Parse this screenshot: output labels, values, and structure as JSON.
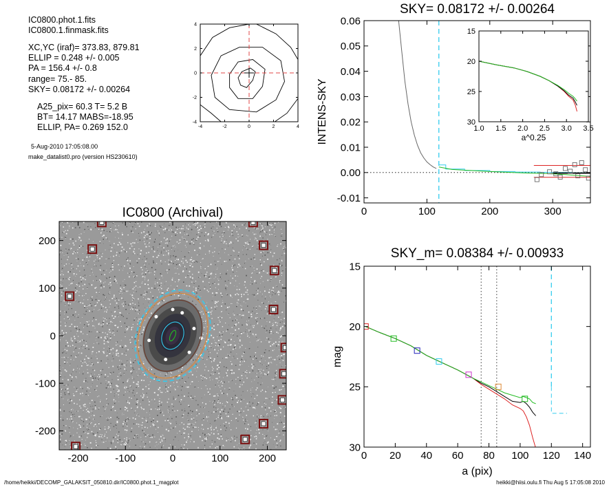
{
  "info": {
    "lines": [
      {
        "text": "IC0800.phot.1.fits"
      },
      {
        "text": "IC0800.1.finmask.fits"
      },
      {
        "text": "XC,YC (iraf)=   373.83, 879.81"
      },
      {
        "text": "ELLIP = 0.248 +/- 0.005"
      },
      {
        "text": "PA    = 156.4 +/-   0.8"
      },
      {
        "text": "range=   75.-   85."
      },
      {
        "text": "SKY= 0.08172 +/- 0.00264"
      },
      {
        "text": "A25_pix= 60.3   T= 5.2  B"
      },
      {
        "text": "BT=  14.17   MABS=-18.95"
      },
      {
        "text": "ELLIP, PA= 0.269   152.0"
      },
      {
        "text": "5-Aug-2010 17:05:08.00"
      },
      {
        "text": "make_datalist0.pro (version HS230610)"
      }
    ]
  },
  "footer": {
    "left": "/home/heikki/DECOMP_GALAKSIT_050810.dir/IC0800.phot.1_magplot",
    "right": "heikki@hiisi.oulu.fi  Thu Aug  5 17:05:08 2010"
  },
  "colors": {
    "cyan": "#33ccee",
    "green": "#22bb22",
    "red": "#dd2222",
    "gray": "#666666",
    "blue": "#2222bb",
    "magenta": "#cc33cc",
    "orange": "#dd8833",
    "brown": "#6b3a2a"
  },
  "chart_data": [
    {
      "id": "contour",
      "type": "contour",
      "title": "",
      "xlim": [
        -4,
        4
      ],
      "ylim": [
        -4,
        4
      ],
      "xticks": [
        -4,
        -2,
        0,
        2,
        4
      ],
      "yticks": [
        -4,
        -2,
        0,
        2,
        4
      ],
      "center": [
        0,
        0
      ],
      "contours": [
        [
          [
            -0.9,
            -0.4
          ],
          [
            -0.6,
            0.1
          ],
          [
            0.1,
            0.4
          ],
          [
            0.5,
            0.1
          ],
          [
            0.3,
            -0.6
          ],
          [
            -0.2,
            -1.2
          ],
          [
            -0.7,
            -1.0
          ]
        ],
        [
          [
            -1.6,
            -1.2
          ],
          [
            -1.6,
            -0.1
          ],
          [
            -0.9,
            0.9
          ],
          [
            0.3,
            1.1
          ],
          [
            1.3,
            0.3
          ],
          [
            1.1,
            -1.1
          ],
          [
            0.3,
            -2.1
          ],
          [
            -0.9,
            -2.1
          ]
        ],
        [
          [
            -2.8,
            -2.0
          ],
          [
            -3.1,
            -0.2
          ],
          [
            -2.3,
            1.4
          ],
          [
            -0.8,
            2.1
          ],
          [
            1.1,
            2.1
          ],
          [
            2.6,
            1.0
          ],
          [
            2.9,
            -0.7
          ],
          [
            2.2,
            -2.2
          ],
          [
            0.6,
            -3.2
          ],
          [
            -1.6,
            -3.0
          ]
        ],
        [
          [
            -4,
            1.4
          ],
          [
            -3,
            2.9
          ],
          [
            -1.6,
            3.7
          ],
          [
            0,
            4
          ]
        ],
        [
          [
            0.6,
            4
          ],
          [
            2.2,
            3.2
          ],
          [
            3.4,
            2.1
          ],
          [
            4,
            1.1
          ]
        ],
        [
          [
            4,
            -2.1
          ],
          [
            3.1,
            -3.3
          ],
          [
            2.1,
            -4
          ]
        ],
        [
          [
            -4,
            -2.6
          ],
          [
            -3.1,
            -3.3
          ],
          [
            -2.3,
            -4
          ]
        ]
      ]
    },
    {
      "id": "sky",
      "type": "line",
      "title": "SKY= 0.08172 +/- 0.00264",
      "xlabel": "",
      "ylabel": "INTENS-SKY",
      "xlim": [
        0,
        360
      ],
      "ylim": [
        -0.012,
        0.06
      ],
      "xticks": [
        0,
        100,
        200,
        300
      ],
      "yticks": [
        -0.01,
        0.0,
        0.01,
        0.02,
        0.03,
        0.04,
        0.05,
        0.06
      ],
      "ytick_labels": [
        "-0.01",
        "0.00",
        "0.01",
        "0.02",
        "0.03",
        "0.04",
        "0.05",
        "0.06"
      ],
      "series": [
        {
          "color": "gray",
          "x": [
            55,
            60,
            65,
            70,
            75,
            80,
            85,
            90,
            95,
            100,
            105,
            110,
            115
          ],
          "y": [
            0.06,
            0.048,
            0.036,
            0.027,
            0.02,
            0.0148,
            0.0108,
            0.0078,
            0.0058,
            0.0042,
            0.0031,
            0.0022,
            0.0016
          ]
        },
        {
          "color": "cyan",
          "x": [
            119,
            130,
            130,
            160,
            160,
            200,
            200,
            240,
            240,
            280,
            280,
            300,
            300,
            330,
            330,
            360
          ],
          "y": [
            0.003,
            0.003,
            0.0014,
            0.0014,
            0.0008,
            0.0008,
            0.0004,
            0.0004,
            0.0002,
            0.0002,
            0.0001,
            0.0001,
            0.0,
            0.0,
            -0.0001,
            -0.0001
          ]
        },
        {
          "color": "green",
          "x": [
            119,
            140,
            170,
            200,
            230,
            260,
            290,
            320,
            340,
            360
          ],
          "y": [
            0.0022,
            0.0012,
            0.0008,
            0.0004,
            0.0001,
            -0.0002,
            -0.0004,
            -0.0008,
            -0.0012,
            -0.0015
          ]
        },
        {
          "color": "red",
          "x": [
            270,
            360
          ],
          "y": [
            0.0028,
            0.0028
          ]
        },
        {
          "color": "red",
          "x": [
            270,
            360
          ],
          "y": [
            -0.0019,
            -0.0019
          ]
        },
        {
          "color": "black",
          "x": [
            300,
            360
          ],
          "y": [
            -0.0002,
            -0.0002
          ]
        }
      ],
      "markers": [
        {
          "color": "gray",
          "x": [
            275,
            282,
            295,
            305,
            312,
            320,
            328,
            335,
            340,
            346,
            352,
            357
          ],
          "y": [
            -0.0028,
            -0.0008,
            0.0003,
            -0.0005,
            -0.0018,
            0.0016,
            0.0005,
            0.0031,
            -0.0013,
            0.0039,
            0.0011,
            -0.0022
          ]
        }
      ],
      "vlines": [
        {
          "x": 119,
          "color": "cyan",
          "dash": true
        }
      ],
      "hlines": [
        {
          "y": 0,
          "color": "black",
          "dash": "dot"
        }
      ]
    },
    {
      "id": "inset",
      "type": "line",
      "title": "",
      "xlabel": "a^0.25",
      "ylabel": "",
      "xlim": [
        1.0,
        3.5
      ],
      "ylim": [
        30,
        15
      ],
      "xticks": [
        1.0,
        1.5,
        2.0,
        2.5,
        3.0,
        3.5
      ],
      "xtick_labels": [
        "1.0",
        "1.5",
        "2.0",
        "2.5",
        "3.0",
        "3.5"
      ],
      "yticks": [
        15,
        20,
        25,
        30
      ],
      "series": [
        {
          "color": "red",
          "x": [
            1.0,
            1.4,
            1.8,
            2.1,
            2.4,
            2.6,
            2.8,
            2.95,
            3.05,
            3.15,
            3.2,
            3.24
          ],
          "y": [
            20.0,
            20.6,
            21.1,
            21.7,
            22.5,
            23.2,
            24.1,
            25.0,
            25.8,
            26.4,
            27.2,
            28.3
          ]
        },
        {
          "color": "black",
          "x": [
            1.0,
            1.4,
            1.8,
            2.1,
            2.4,
            2.6,
            2.8,
            2.95,
            3.05,
            3.15,
            3.2,
            3.24
          ],
          "y": [
            20.0,
            20.6,
            21.1,
            21.7,
            22.5,
            23.2,
            24.1,
            24.9,
            25.6,
            26.1,
            26.7,
            27.3
          ]
        },
        {
          "color": "green",
          "x": [
            1.0,
            1.4,
            1.8,
            2.1,
            2.4,
            2.6,
            2.8,
            2.95,
            3.05,
            3.15,
            3.2,
            3.24
          ],
          "y": [
            20.0,
            20.6,
            21.1,
            21.7,
            22.5,
            23.2,
            24.0,
            24.7,
            25.3,
            25.8,
            26.2,
            26.6
          ]
        }
      ]
    },
    {
      "id": "image",
      "type": "image",
      "title": "IC0800 (Archival)",
      "xlim": [
        -240,
        240
      ],
      "ylim": [
        -240,
        240
      ],
      "xticks": [
        -200,
        -100,
        0,
        100,
        200
      ],
      "yticks": [
        -200,
        -100,
        0,
        100,
        200
      ],
      "ellipses": [
        {
          "a": 100,
          "b": 75,
          "pa": 156.4,
          "color": "cyan",
          "dash": true
        },
        {
          "a": 93,
          "b": 70,
          "pa": 156.4,
          "color": "orange",
          "dash": false
        },
        {
          "a": 78,
          "b": 58,
          "pa": 156.4,
          "color": "brown",
          "dash": false
        },
        {
          "a": 30,
          "b": 22,
          "pa": 156.4,
          "color": "cyan",
          "dash": false
        },
        {
          "a": 12,
          "b": 5,
          "pa": 156.4,
          "color": "green",
          "dash": false
        }
      ],
      "masks": [
        [
          -150,
          238
        ],
        [
          -170,
          182
        ],
        [
          -218,
          83
        ],
        [
          170,
          238
        ],
        [
          192,
          190
        ],
        [
          215,
          137
        ],
        [
          213,
          55
        ],
        [
          238,
          -25
        ],
        [
          235,
          -80
        ],
        [
          232,
          -135
        ],
        [
          192,
          -185
        ],
        [
          153,
          -218
        ],
        [
          -205,
          -233
        ]
      ]
    },
    {
      "id": "mag",
      "type": "line",
      "title": "SKY_m=  0.08384 +/- 0.00933",
      "xlabel": "a (pix)",
      "ylabel": "mag",
      "xlim": [
        0,
        145
      ],
      "ylim": [
        30,
        15
      ],
      "xticks": [
        0,
        20,
        40,
        60,
        80,
        100,
        120,
        140
      ],
      "yticks": [
        15,
        20,
        25,
        30
      ],
      "series": [
        {
          "color": "red",
          "x": [
            1,
            10,
            20,
            30,
            40,
            50,
            60,
            70,
            75,
            80,
            85,
            90,
            95,
            100,
            102,
            104,
            106,
            108,
            110
          ],
          "y": [
            20.0,
            20.5,
            21.0,
            21.6,
            22.4,
            23.0,
            23.6,
            24.3,
            24.8,
            25.2,
            25.6,
            26.0,
            26.5,
            26.8,
            27.0,
            27.5,
            28.2,
            29.2,
            30.1
          ]
        },
        {
          "color": "black",
          "x": [
            1,
            10,
            20,
            30,
            40,
            50,
            60,
            70,
            75,
            80,
            85,
            90,
            95,
            100,
            102,
            104,
            106,
            108,
            110
          ],
          "y": [
            20.0,
            20.5,
            21.0,
            21.6,
            22.4,
            23.0,
            23.6,
            24.3,
            24.7,
            25.0,
            25.4,
            25.8,
            26.2,
            26.3,
            26.2,
            26.4,
            26.7,
            27.1,
            27.4
          ]
        },
        {
          "color": "green",
          "x": [
            1,
            10,
            20,
            30,
            40,
            50,
            60,
            70,
            75,
            80,
            85,
            90,
            95,
            100,
            102,
            104,
            106,
            108,
            110
          ],
          "y": [
            20.0,
            20.5,
            21.0,
            21.6,
            22.4,
            23.0,
            23.6,
            24.3,
            24.6,
            24.9,
            25.2,
            25.5,
            25.7,
            25.9,
            25.8,
            25.9,
            26.0,
            26.3,
            26.4
          ]
        },
        {
          "color": "cyan",
          "x": [
            120,
            120,
            130
          ],
          "y": [
            25.0,
            27.2,
            27.2
          ],
          "dash": true
        }
      ],
      "markers": [
        {
          "color": "red",
          "x": [
            1
          ],
          "y": [
            20.0
          ]
        },
        {
          "color": "green",
          "x": [
            19
          ],
          "y": [
            21.0
          ]
        },
        {
          "color": "blue",
          "x": [
            34
          ],
          "y": [
            22.0
          ]
        },
        {
          "color": "cyan",
          "x": [
            48
          ],
          "y": [
            22.9
          ]
        },
        {
          "color": "magenta",
          "x": [
            67
          ],
          "y": [
            24.0
          ]
        },
        {
          "color": "orange",
          "x": [
            86
          ],
          "y": [
            25.0
          ]
        },
        {
          "color": "green",
          "x": [
            103
          ],
          "y": [
            26.0
          ]
        }
      ],
      "vlines": [
        {
          "x": 75,
          "color": "black",
          "dash": "dot"
        },
        {
          "x": 85,
          "color": "black",
          "dash": "dot"
        },
        {
          "x": 120,
          "color": "cyan",
          "dash": true,
          "y0": 15,
          "y1": 25
        }
      ]
    }
  ]
}
